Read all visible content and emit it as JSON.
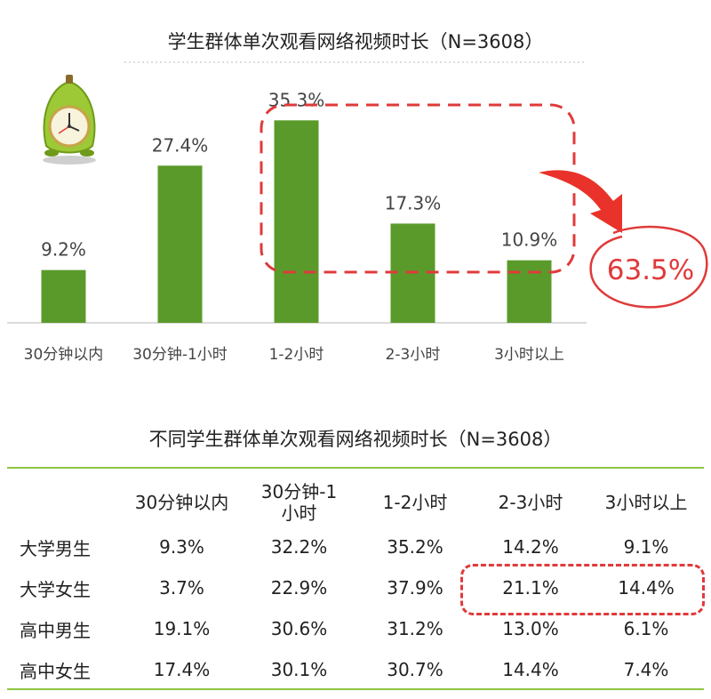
{
  "chart_data": [
    {
      "type": "bar",
      "title": "学生群体单次观看网络视频时长（N=3608）",
      "categories": [
        "30分钟以内",
        "30分钟-1小时",
        "1-2小时",
        "2-3小时",
        "3小时以上"
      ],
      "values": [
        9.2,
        27.4,
        35.3,
        17.3,
        10.9
      ],
      "value_labels": [
        "9.2%",
        "27.4%",
        "35.3%",
        "17.3%",
        "10.9%"
      ],
      "ylim": [
        0,
        40
      ],
      "color": "#5a9a2a",
      "grid": false,
      "annotation": {
        "text": "63.5%",
        "color": "#e03a3a",
        "highlighted_categories": [
          "1-2小时",
          "2-3小时",
          "3小时以上"
        ]
      }
    },
    {
      "type": "table",
      "title": "不同学生群体单次观看网络视频时长（N=3608）",
      "columns": [
        "30分钟以内",
        "30分钟-1小时",
        "1-2小时",
        "2-3小时",
        "3小时以上"
      ],
      "rows": [
        {
          "label": "大学男生",
          "values": [
            "9.3%",
            "32.2%",
            "35.2%",
            "14.2%",
            "9.1%"
          ]
        },
        {
          "label": "大学女生",
          "values": [
            "3.7%",
            "22.9%",
            "37.9%",
            "21.1%",
            "14.4%"
          ]
        },
        {
          "label": "高中男生",
          "values": [
            "19.1%",
            "30.6%",
            "31.2%",
            "13.0%",
            "6.1%"
          ]
        },
        {
          "label": "高中女生",
          "values": [
            "17.4%",
            "30.1%",
            "30.7%",
            "14.4%",
            "7.4%"
          ]
        }
      ],
      "accent_color": "#8dc63f",
      "highlight_color": "#e03a3a"
    }
  ]
}
